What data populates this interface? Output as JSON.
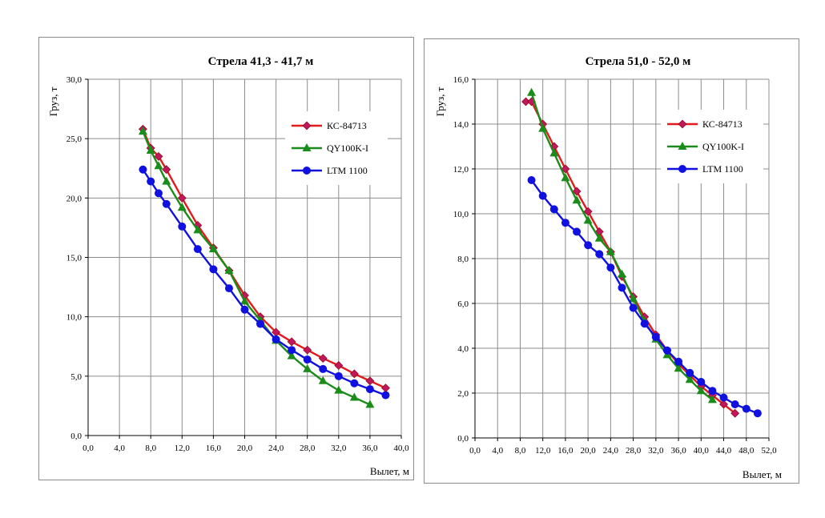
{
  "chart_data": [
    {
      "type": "line",
      "title": "Стрела 41,3 - 41,7 м",
      "xlabel": "Вылет, м",
      "ylabel": "Груз, т",
      "xlim": [
        0,
        40
      ],
      "ylim": [
        0,
        30
      ],
      "xticks": [
        0,
        4,
        8,
        12,
        16,
        20,
        24,
        28,
        32,
        36,
        40
      ],
      "yticks": [
        0,
        5,
        10,
        15,
        20,
        25,
        30
      ],
      "xtick_labels": [
        "0,0",
        "4,0",
        "8,0",
        "12,0",
        "16,0",
        "20,0",
        "24,0",
        "28,0",
        "32,0",
        "36,0",
        "40,0"
      ],
      "ytick_labels": [
        "0,0",
        "5,0",
        "10,0",
        "15,0",
        "20,0",
        "25,0",
        "30,0"
      ],
      "grid": true,
      "legend_position": "top-right",
      "series": [
        {
          "name": "КС-84713",
          "color": "#e31a1c",
          "marker_color": "#c0175d",
          "marker": "diamond",
          "x": [
            7,
            8,
            9,
            10,
            12,
            14,
            16,
            18,
            20,
            22,
            24,
            26,
            28,
            30,
            32,
            34,
            36,
            38
          ],
          "y": [
            25.8,
            24.2,
            23.5,
            22.4,
            20.0,
            17.7,
            15.8,
            13.9,
            11.8,
            10.0,
            8.7,
            7.9,
            7.2,
            6.5,
            5.9,
            5.2,
            4.6,
            4.0
          ]
        },
        {
          "name": "QY100K-I",
          "color": "#1a8c1a",
          "marker_color": "#1a8c1a",
          "marker": "triangle",
          "x": [
            7,
            8,
            9,
            10,
            12,
            14,
            16,
            18,
            20,
            22,
            24,
            26,
            28,
            30,
            32,
            34,
            36
          ],
          "y": [
            25.6,
            24.0,
            22.7,
            21.4,
            19.2,
            17.3,
            15.7,
            13.9,
            11.3,
            9.7,
            8.0,
            6.7,
            5.6,
            4.6,
            3.8,
            3.2,
            2.6
          ]
        },
        {
          "name": "LTM 1100",
          "color": "#1010e0",
          "marker_color": "#1010e0",
          "marker": "circle",
          "x": [
            7,
            8,
            9,
            10,
            12,
            14,
            16,
            18,
            20,
            22,
            24,
            26,
            28,
            30,
            32,
            34,
            36,
            38
          ],
          "y": [
            22.4,
            21.4,
            20.4,
            19.5,
            17.6,
            15.7,
            14.0,
            12.4,
            10.6,
            9.4,
            8.1,
            7.2,
            6.4,
            5.6,
            5.0,
            4.4,
            3.9,
            3.4
          ]
        }
      ]
    },
    {
      "type": "line",
      "title": "Стрела 51,0 - 52,0 м",
      "xlabel": "Вылет, м",
      "ylabel": "Груз, т",
      "xlim": [
        0,
        52
      ],
      "ylim": [
        0,
        16
      ],
      "xticks": [
        0,
        4,
        8,
        12,
        16,
        20,
        24,
        28,
        32,
        36,
        40,
        44,
        48,
        52
      ],
      "yticks": [
        0,
        2,
        4,
        6,
        8,
        10,
        12,
        14,
        16
      ],
      "xtick_labels": [
        "0,0",
        "4,0",
        "8,0",
        "12,0",
        "16,0",
        "20,0",
        "24,0",
        "28,0",
        "32,0",
        "36,0",
        "40,0",
        "44,0",
        "48,0",
        "52,0"
      ],
      "ytick_labels": [
        "0,0",
        "2,0",
        "4,0",
        "6,0",
        "8,0",
        "10,0",
        "12,0",
        "14,0",
        "16,0"
      ],
      "grid": true,
      "legend_position": "top-right",
      "series": [
        {
          "name": "КС-84713",
          "color": "#e31a1c",
          "marker_color": "#c0175d",
          "marker": "diamond",
          "x": [
            9,
            10,
            12,
            14,
            16,
            18,
            20,
            22,
            24,
            26,
            28,
            30,
            32,
            34,
            36,
            38,
            40,
            42,
            44,
            46
          ],
          "y": [
            15.0,
            15.0,
            14.0,
            13.0,
            12.0,
            11.0,
            10.1,
            9.2,
            8.3,
            7.2,
            6.3,
            5.4,
            4.6,
            3.9,
            3.3,
            2.8,
            2.3,
            1.9,
            1.5,
            1.1
          ]
        },
        {
          "name": "QY100K-I",
          "color": "#1a8c1a",
          "marker_color": "#1a8c1a",
          "marker": "triangle",
          "x": [
            10,
            12,
            14,
            16,
            18,
            20,
            22,
            24,
            26,
            28,
            30,
            32,
            34,
            36,
            38,
            40,
            42
          ],
          "y": [
            15.4,
            13.8,
            12.7,
            11.6,
            10.6,
            9.7,
            8.9,
            8.3,
            7.3,
            6.2,
            5.2,
            4.4,
            3.7,
            3.1,
            2.6,
            2.1,
            1.7
          ]
        },
        {
          "name": "LTM 1100",
          "color": "#1010e0",
          "marker_color": "#1010e0",
          "marker": "circle",
          "x": [
            10,
            12,
            14,
            16,
            18,
            20,
            22,
            24,
            26,
            28,
            30,
            32,
            34,
            36,
            38,
            40,
            42,
            44,
            46,
            48,
            50
          ],
          "y": [
            11.5,
            10.8,
            10.2,
            9.6,
            9.2,
            8.6,
            8.2,
            7.6,
            6.7,
            5.8,
            5.1,
            4.5,
            3.9,
            3.4,
            2.9,
            2.5,
            2.1,
            1.8,
            1.5,
            1.3,
            1.1
          ]
        }
      ]
    }
  ]
}
